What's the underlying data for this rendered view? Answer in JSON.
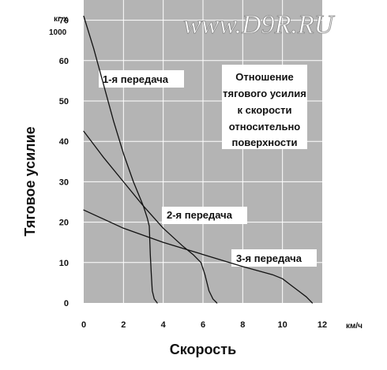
{
  "watermark": "www.D9R.RU",
  "chart_data": {
    "type": "line",
    "title": "",
    "xlabel": "Скорость",
    "ylabel": "Тяговое усилие",
    "x_unit": "км/ч",
    "y_unit_line1": "кг x",
    "y_unit_line2": "1000",
    "xlim": [
      0,
      12
    ],
    "ylim": [
      0,
      75
    ],
    "x_ticks": [
      0,
      2,
      4,
      6,
      8,
      10,
      12
    ],
    "y_ticks": [
      0,
      10,
      20,
      30,
      40,
      50,
      60,
      70
    ],
    "grid": true,
    "annotation_lines": [
      "Отношение",
      "тягового усилия",
      "к скорости",
      "относительно",
      "поверхности"
    ],
    "series": [
      {
        "name": "1-я передача",
        "x": [
          0,
          0.5,
          1.0,
          1.5,
          2.0,
          2.5,
          3.0,
          3.2,
          3.3,
          3.35,
          3.4,
          3.45,
          3.55,
          3.7
        ],
        "y": [
          71,
          63,
          54,
          45,
          37,
          30,
          24,
          21,
          19,
          12,
          7,
          3,
          1,
          0
        ]
      },
      {
        "name": "2-я передача",
        "x": [
          0,
          1.0,
          2.0,
          3.0,
          4.0,
          5.0,
          5.5,
          5.9,
          6.1,
          6.3,
          6.5,
          6.7
        ],
        "y": [
          42.5,
          36,
          30,
          24,
          18.5,
          14,
          12,
          10,
          7,
          3,
          1,
          0
        ]
      },
      {
        "name": "3-я передача",
        "x": [
          0,
          2.0,
          4.0,
          6.0,
          8.0,
          9.5,
          10.0,
          10.4,
          10.8,
          11.2,
          11.5
        ],
        "y": [
          23,
          18.5,
          15,
          12,
          9,
          7,
          6,
          4.5,
          3,
          1.5,
          0
        ]
      }
    ]
  }
}
